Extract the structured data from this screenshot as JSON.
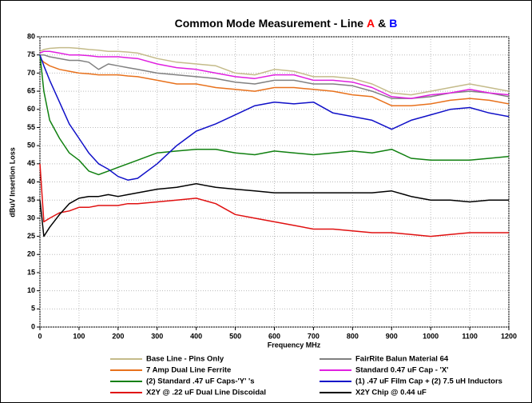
{
  "chart_data": {
    "type": "line",
    "title": [
      {
        "text": "Common Mode Measurement - Line",
        "color": "#000000"
      },
      {
        "text": "A",
        "color": "#ff0000"
      },
      {
        "text": "&",
        "color": "#000000"
      },
      {
        "text": "B",
        "color": "#0000ff"
      }
    ],
    "x_label": "Frequency MHz",
    "y_label": "dBuV Insertion Loss",
    "x": [
      0,
      10,
      25,
      50,
      75,
      100,
      125,
      150,
      175,
      200,
      225,
      250,
      300,
      350,
      400,
      450,
      500,
      550,
      600,
      650,
      700,
      750,
      800,
      850,
      900,
      950,
      1000,
      1050,
      1100,
      1150,
      1200
    ],
    "series": [
      {
        "name": "Base Line - Pins Only",
        "color": "#c4bb8a",
        "values": [
          76,
          76.5,
          76.8,
          77,
          77,
          76.8,
          76.5,
          76.3,
          76,
          76,
          75.8,
          75.5,
          74,
          73,
          72.5,
          72,
          70,
          69.5,
          71,
          70.5,
          69,
          69,
          68.5,
          67,
          64.5,
          64,
          65,
          66,
          67,
          66,
          65
        ]
      },
      {
        "name": "FairRite Balun Material 64",
        "color": "#808080",
        "values": [
          75,
          75,
          74.5,
          74,
          73.5,
          73.5,
          73,
          71,
          72.5,
          72,
          71.5,
          71,
          70,
          69.5,
          69,
          68.5,
          67.5,
          67,
          68,
          68,
          67,
          67,
          66.5,
          65,
          63,
          63,
          63.5,
          64.5,
          65,
          64.5,
          63.5
        ]
      },
      {
        "name": "7 Amp Dual Line Ferrite",
        "color": "#e8711c",
        "values": [
          74,
          73,
          72,
          71,
          70.5,
          70,
          69.8,
          69.5,
          69.5,
          69.5,
          69.2,
          69,
          68,
          67,
          67,
          66,
          65.5,
          65,
          66,
          66,
          65.5,
          65,
          64,
          63.5,
          61,
          61,
          61.5,
          62.5,
          63,
          62.5,
          61.5
        ]
      },
      {
        "name": "Standard 0.47 uF Cap - 'X'",
        "color": "#e020e0",
        "values": [
          75.5,
          76,
          76,
          75.5,
          75,
          75,
          74.8,
          74.5,
          74.5,
          74.5,
          74.2,
          74,
          72.5,
          71.5,
          71,
          70,
          69,
          68.5,
          69.5,
          69.5,
          68,
          68,
          67.5,
          66,
          63.5,
          63,
          64,
          64.5,
          65.5,
          64.5,
          64
        ]
      },
      {
        "name": "(2) Standard .47 uF Caps-'Y' 's",
        "color": "#108010",
        "values": [
          75,
          65,
          57,
          52,
          48,
          46,
          43,
          42,
          43,
          44,
          45,
          46,
          48,
          48.5,
          49,
          49,
          48,
          47.5,
          48.5,
          48,
          47.5,
          48,
          48.5,
          48,
          49,
          46.5,
          46,
          46,
          46,
          46.5,
          47
        ]
      },
      {
        "name": "(1) .47 uF Film Cap + (2) 7.5 uH Inductors",
        "color": "#1010c8",
        "values": [
          75,
          72,
          68,
          62,
          56,
          52,
          48,
          45,
          43.5,
          41.5,
          40.5,
          41,
          45,
          50,
          54,
          56,
          58.5,
          61,
          62,
          61.5,
          62,
          59,
          58,
          57,
          54.5,
          57,
          58.5,
          60,
          60.5,
          59,
          58
        ]
      },
      {
        "name": "X2Y @ .22 uF Dual Line Discoidal",
        "color": "#e01010",
        "values": [
          45,
          29,
          30,
          31.5,
          32,
          33,
          33,
          33.5,
          33.5,
          33.5,
          34,
          34,
          34.5,
          35,
          35.5,
          34,
          31,
          30,
          29,
          28,
          27,
          27,
          26.5,
          26,
          26,
          25.5,
          25,
          25.5,
          26,
          26,
          26
        ]
      },
      {
        "name": "X2Y Chip @ 0.44 uF",
        "color": "#000000",
        "values": [
          35,
          25,
          27.5,
          31,
          34,
          35.5,
          36,
          36,
          36.5,
          36,
          36.5,
          37,
          38,
          38.5,
          39.5,
          38.5,
          38,
          37.5,
          37,
          37,
          37,
          37,
          37,
          37,
          37.5,
          36,
          35,
          35,
          34.5,
          35,
          35
        ]
      }
    ],
    "xlim": [
      0,
      1200
    ],
    "xticks": [
      0,
      100,
      200,
      300,
      400,
      500,
      600,
      700,
      800,
      900,
      1000,
      1100,
      1200
    ],
    "ylim": [
      0,
      80
    ],
    "yticks": [
      0,
      5,
      10,
      15,
      20,
      25,
      30,
      35,
      40,
      45,
      50,
      55,
      60,
      65,
      70,
      75,
      80
    ],
    "grid": true
  }
}
